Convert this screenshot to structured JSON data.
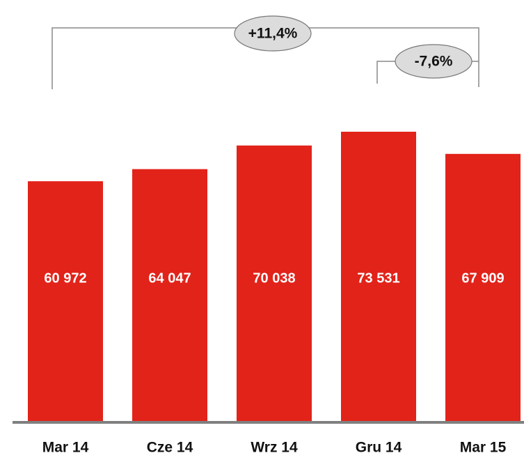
{
  "chart_data": {
    "type": "bar",
    "categories": [
      "Mar 14",
      "Cze 14",
      "Wrz 14",
      "Gru 14",
      "Mar 15"
    ],
    "values": [
      60972,
      64047,
      70038,
      73531,
      67909
    ],
    "value_labels": [
      "60 972",
      "64 047",
      "70 038",
      "73 531",
      "67 909"
    ],
    "color": "#e2231a",
    "annotations": [
      "+11,4%",
      "-7,6%"
    ]
  }
}
